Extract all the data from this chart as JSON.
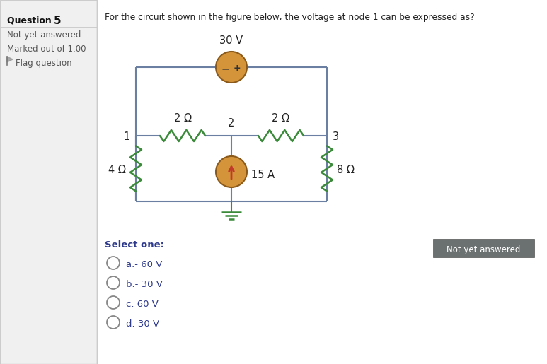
{
  "title": "For the circuit shown in the figure below, the voltage at node 1 can be expressed as?",
  "question_label": "Question ",
  "question_num": "5",
  "question_sub1": "Not yet answered",
  "question_sub2": "Marked out of 1.00",
  "question_sub3": "Flag question",
  "voltage_source": "30 V",
  "current_source": "15 A",
  "r1_label": "2 Ω",
  "r2_label": "2 Ω",
  "r3_label": "4 Ω",
  "r4_label": "8 Ω",
  "node1_label": "1",
  "node2_label": "2",
  "node3_label": "3",
  "select_one": "Select one:",
  "options": [
    "a.- 60 V",
    "b.- 30 V",
    "c. 60 V",
    "d. 30 V"
  ],
  "not_yet_answered_btn": "Not yet answered",
  "bg_color": "#ffffff",
  "wire_color": "#6b7fa3",
  "resistor_color": "#3a8a3a",
  "voltage_source_color": "#d4943a",
  "current_source_fill": "#d4943a",
  "current_arrow_color": "#c0392b",
  "sidebar_bg": "#f0f0f0",
  "sidebar_border": "#cccccc",
  "text_color": "#333333",
  "blue_text_color": "#2e3a8c",
  "option_text_color": "#2e3a8c",
  "btn_bg": "#6b7070",
  "btn_text": "#ffffff",
  "ground_color": "#3a8a3a"
}
